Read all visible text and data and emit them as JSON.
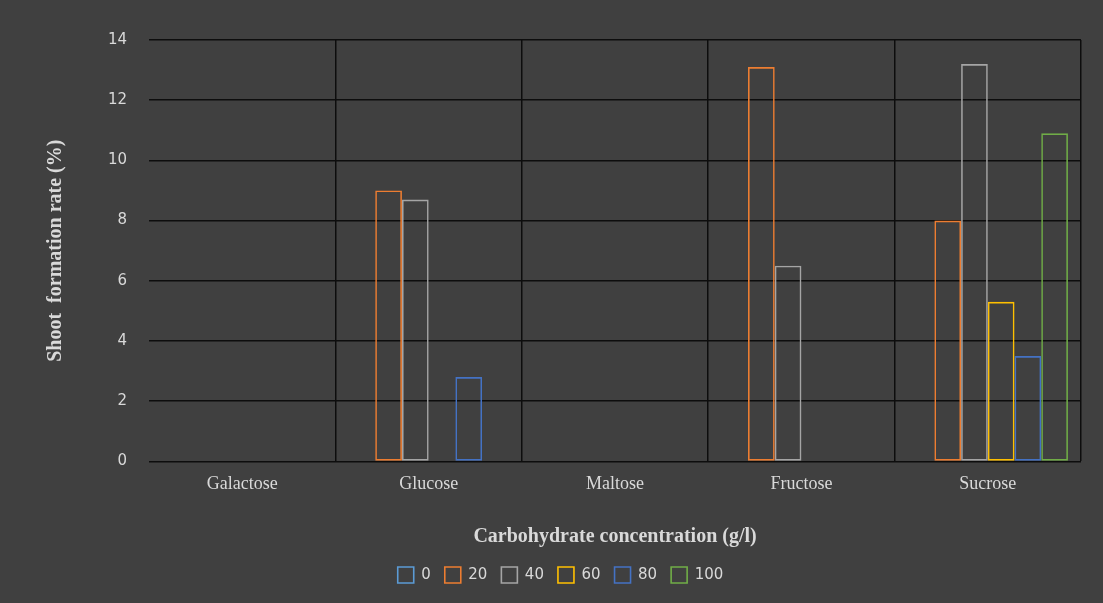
{
  "chart_data": {
    "type": "bar",
    "xlabel": "Carbohydrate concentration (g/l)",
    "ylabel": "Shoot  formation rate (%)",
    "categories": [
      "Galactose",
      "Glucose",
      "Maltose",
      "Fructose",
      "Sucrose"
    ],
    "series": [
      {
        "name": "0",
        "color": "#5b9bd5",
        "values": [
          0,
          0,
          0,
          0,
          0
        ]
      },
      {
        "name": "20",
        "color": "#ed7d31",
        "values": [
          0,
          9.0,
          0,
          13.1,
          8.0
        ]
      },
      {
        "name": "40",
        "color": "#a5a5a5",
        "values": [
          0,
          8.7,
          0,
          6.5,
          13.2
        ]
      },
      {
        "name": "60",
        "color": "#ffc000",
        "values": [
          0,
          0,
          0,
          0,
          5.3
        ]
      },
      {
        "name": "80",
        "color": "#4472c4",
        "values": [
          0,
          2.8,
          0,
          0,
          3.5
        ]
      },
      {
        "name": "100",
        "color": "#70ad47",
        "values": [
          0,
          0,
          0,
          0,
          10.9
        ]
      }
    ],
    "ylim": [
      0,
      14
    ],
    "yticks": [
      0,
      2,
      4,
      6,
      8,
      10,
      12,
      14
    ],
    "grid": true,
    "legend": "bottom"
  }
}
